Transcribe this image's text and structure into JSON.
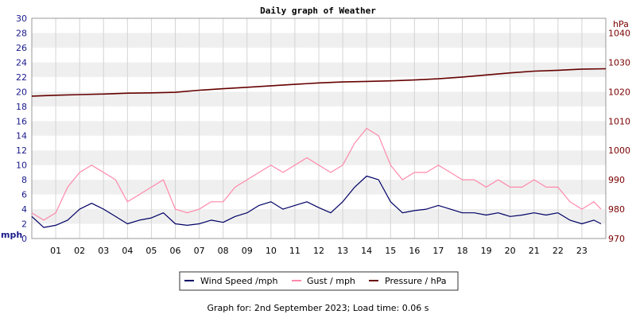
{
  "chart_data": {
    "type": "line",
    "title": "Daily graph of Weather",
    "footer": "Graph for: 2nd September 2023; Load time: 0.06 s",
    "x": {
      "unit": "hour of day",
      "range": [
        0,
        24
      ],
      "tick_labels": [
        "01",
        "02",
        "03",
        "04",
        "05",
        "06",
        "07",
        "08",
        "09",
        "10",
        "11",
        "12",
        "13",
        "14",
        "15",
        "16",
        "17",
        "18",
        "19",
        "20",
        "21",
        "22",
        "23"
      ]
    },
    "y_left": {
      "label": "mph",
      "range": [
        0,
        30
      ],
      "ticks": [
        0,
        2,
        4,
        6,
        8,
        10,
        12,
        14,
        16,
        18,
        20,
        22,
        24,
        26,
        28,
        30
      ]
    },
    "y_right": {
      "label": "hPa",
      "range": [
        970,
        1045
      ],
      "ticks": [
        970,
        980,
        990,
        1000,
        1010,
        1020,
        1030,
        1040
      ]
    },
    "grid": true,
    "legend_position": "bottom-center",
    "series": [
      {
        "name": "Wind Speed /mph",
        "axis": "left",
        "color": "#000066",
        "x": [
          0,
          0.5,
          1,
          1.5,
          2,
          2.5,
          3,
          3.5,
          4,
          4.5,
          5,
          5.5,
          6,
          6.5,
          7,
          7.5,
          8,
          8.5,
          9,
          9.5,
          10,
          10.5,
          11,
          11.5,
          12,
          12.5,
          13,
          13.5,
          14,
          14.5,
          15,
          15.5,
          16,
          16.5,
          17,
          17.5,
          18,
          18.5,
          19,
          19.5,
          20,
          20.5,
          21,
          21.5,
          22,
          22.5,
          23,
          23.5,
          23.8
        ],
        "values": [
          3,
          1.5,
          1.8,
          2.5,
          4,
          4.8,
          4,
          3,
          2,
          2.5,
          2.8,
          3.5,
          2,
          1.8,
          2,
          2.5,
          2.2,
          3,
          3.5,
          4.5,
          5,
          4,
          4.5,
          5,
          4.2,
          3.5,
          5,
          7,
          8.5,
          8,
          5,
          3.5,
          3.8,
          4,
          4.5,
          4,
          3.5,
          3.5,
          3.2,
          3.5,
          3,
          3.2,
          3.5,
          3.2,
          3.5,
          2.5,
          2,
          2.5,
          2
        ]
      },
      {
        "name": "Gust / mph",
        "axis": "left",
        "color": "#ff88aa",
        "x": [
          0,
          0.5,
          1,
          1.5,
          2,
          2.5,
          3,
          3.5,
          4,
          4.5,
          5,
          5.5,
          6,
          6.5,
          7,
          7.5,
          8,
          8.5,
          9,
          9.5,
          10,
          10.5,
          11,
          11.5,
          12,
          12.5,
          13,
          13.5,
          14,
          14.5,
          15,
          15.5,
          16,
          16.5,
          17,
          17.5,
          18,
          18.5,
          19,
          19.5,
          20,
          20.5,
          21,
          21.5,
          22,
          22.5,
          23,
          23.5,
          23.8
        ],
        "values": [
          3.5,
          2.5,
          3.5,
          7,
          9,
          10,
          9,
          8,
          5,
          6,
          7,
          8,
          4,
          3.5,
          4,
          5,
          5,
          7,
          8,
          9,
          10,
          9,
          10,
          11,
          10,
          9,
          10,
          13,
          15,
          14,
          10,
          8,
          9,
          9,
          10,
          9,
          8,
          8,
          7,
          8,
          7,
          7,
          8,
          7,
          7,
          5,
          4,
          5,
          4
        ]
      },
      {
        "name": "Pressure / hPa",
        "axis": "right",
        "color": "#660000",
        "x": [
          0,
          1,
          2,
          3,
          4,
          5,
          6,
          7,
          8,
          9,
          10,
          11,
          12,
          13,
          14,
          15,
          16,
          17,
          18,
          19,
          20,
          21,
          22,
          23,
          24
        ],
        "values": [
          1018.5,
          1018.8,
          1019,
          1019.2,
          1019.5,
          1019.6,
          1019.8,
          1020.5,
          1021,
          1021.5,
          1022,
          1022.5,
          1023,
          1023.3,
          1023.5,
          1023.7,
          1024,
          1024.4,
          1025,
          1025.7,
          1026.4,
          1027,
          1027.3,
          1027.7,
          1027.8
        ]
      }
    ]
  }
}
